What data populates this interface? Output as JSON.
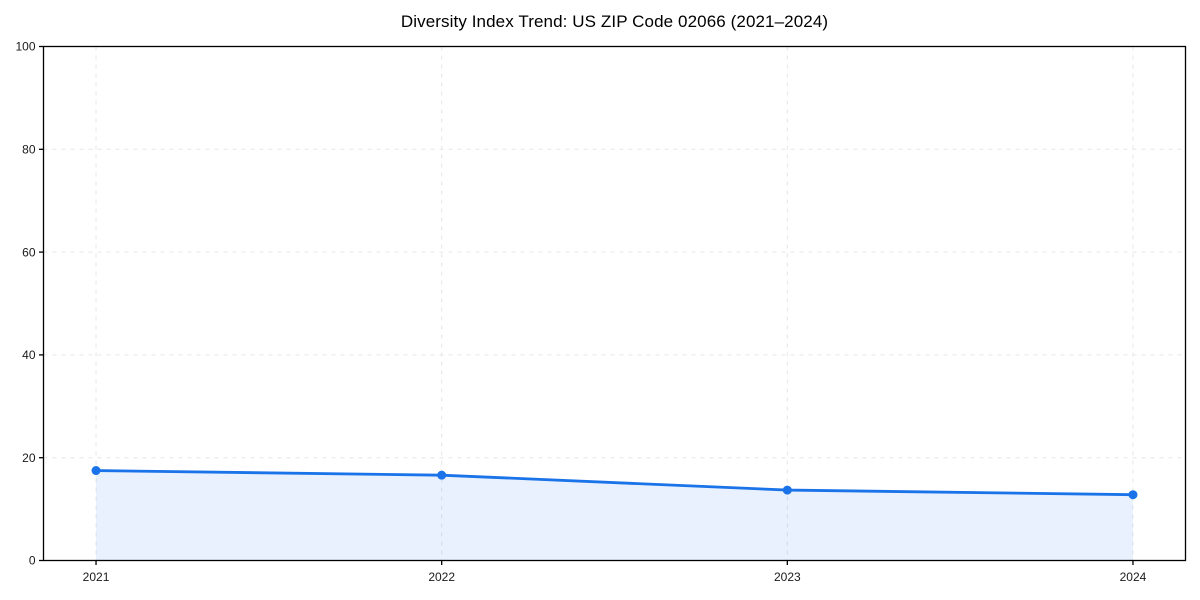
{
  "chart_data": {
    "type": "area",
    "title": "Diversity Index Trend: US ZIP Code 02066 (2021–2024)",
    "categories": [
      "2021",
      "2022",
      "2023",
      "2024"
    ],
    "series": [
      {
        "name": "Diversity Index",
        "values": [
          17.5,
          16.6,
          13.7,
          12.8
        ]
      }
    ],
    "xlabel": "",
    "ylabel": "",
    "ylim": [
      0,
      100
    ],
    "yticks": [
      0,
      20,
      40,
      60,
      80,
      100
    ],
    "grid": true,
    "grid_style": "dashed",
    "legend": false,
    "markers": true,
    "colors": {
      "line": "#1a73e8",
      "fill_opacity": 0.1,
      "grid": "#e6e6e6",
      "axis": "#000000",
      "text": "#1a1a1a",
      "background": "#ffffff"
    }
  }
}
